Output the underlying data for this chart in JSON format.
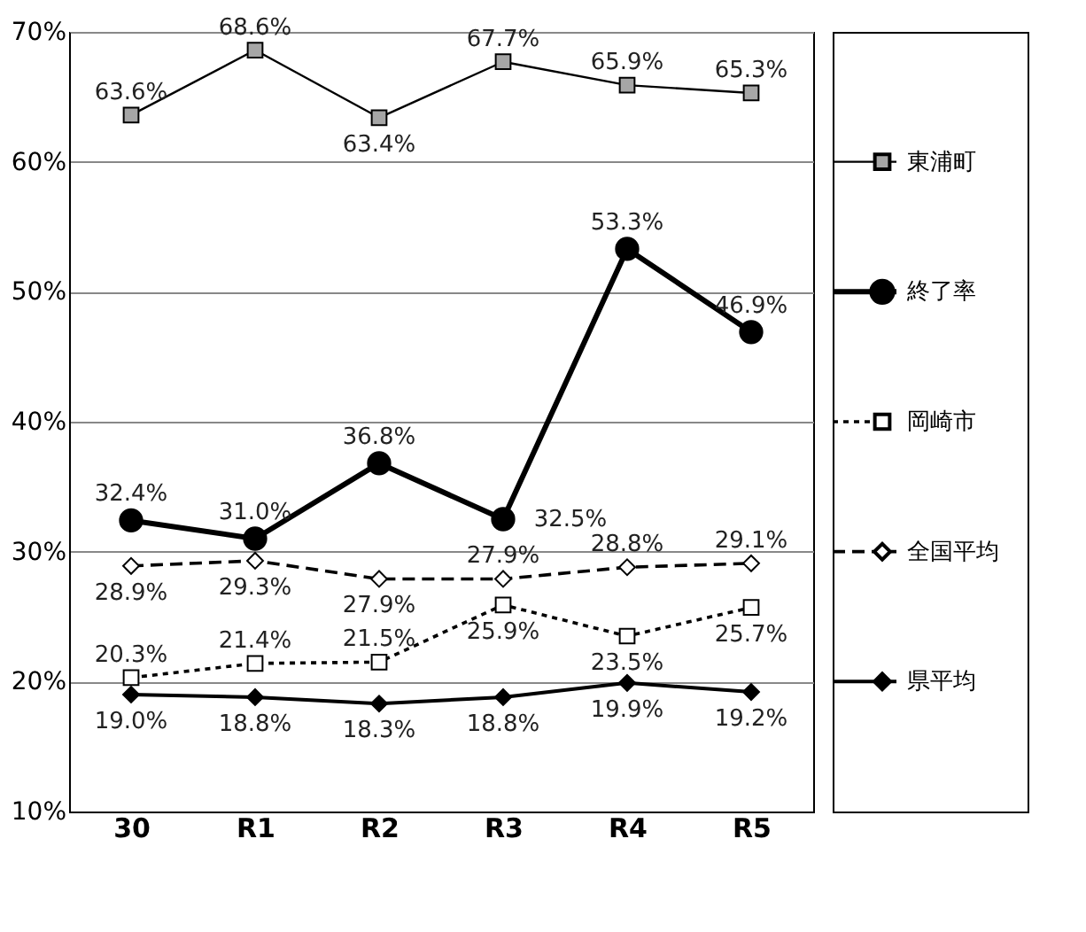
{
  "chart_data": {
    "type": "line",
    "categories": [
      "30",
      "R1",
      "R2",
      "R3",
      "R4",
      "R5"
    ],
    "series": [
      {
        "name": "東浦町",
        "color": "#a6a6a6",
        "marker": "square",
        "line_style": "solid",
        "values": [
          63.6,
          68.6,
          63.4,
          67.7,
          65.9,
          65.3
        ],
        "value_labels": [
          "63.6%",
          "68.6%",
          "63.4%",
          "67.7%",
          "65.9%",
          "65.3%"
        ]
      },
      {
        "name": "終了率",
        "color": "#000000",
        "marker": "circle",
        "line_style": "solid",
        "values": [
          32.4,
          31.0,
          36.8,
          32.5,
          53.3,
          46.9
        ],
        "value_labels": [
          "32.4%",
          "31.0%",
          "36.8%",
          "32.5%",
          "53.3%",
          "46.9%"
        ]
      },
      {
        "name": "岡崎市",
        "color": "#ffffff",
        "marker": "square",
        "line_style": "dotted",
        "values": [
          20.3,
          21.4,
          21.5,
          25.9,
          23.5,
          25.7
        ],
        "value_labels": [
          "20.3%",
          "21.4%",
          "21.5%",
          "25.9%",
          "23.5%",
          "25.7%"
        ]
      },
      {
        "name": "全国平均",
        "color": "#ffffff",
        "marker": "diamond",
        "line_style": "dashed",
        "values": [
          28.9,
          29.3,
          27.9,
          27.9,
          28.8,
          29.1
        ],
        "value_labels": [
          "28.9%",
          "29.3%",
          "27.9%",
          "27.9%",
          "28.8%",
          "29.1%"
        ]
      },
      {
        "name": "県平均",
        "color": "#000000",
        "marker": "diamond",
        "line_style": "solid",
        "values": [
          19.0,
          18.8,
          18.3,
          18.8,
          19.9,
          19.2
        ],
        "value_labels": [
          "19.0%",
          "18.8%",
          "18.3%",
          "18.8%",
          "19.9%",
          "19.2%"
        ]
      }
    ],
    "ylim": [
      10,
      70
    ],
    "yticks": [
      {
        "value": 10,
        "label": "10%"
      },
      {
        "value": 20,
        "label": "20%"
      },
      {
        "value": 30,
        "label": "30%"
      },
      {
        "value": 40,
        "label": "40%"
      },
      {
        "value": 50,
        "label": "50%"
      },
      {
        "value": 60,
        "label": "60%"
      },
      {
        "value": 70,
        "label": "70%"
      }
    ],
    "grid": "y",
    "legend": "right"
  }
}
